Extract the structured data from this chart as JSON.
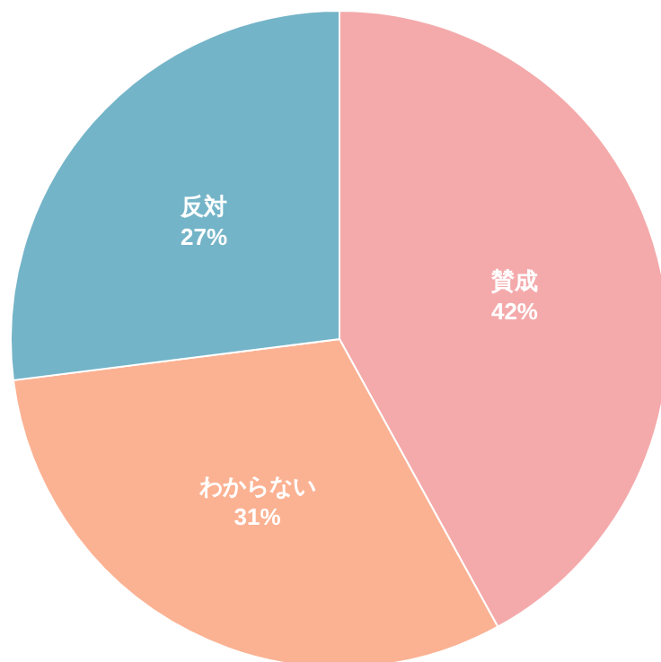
{
  "chart_data": {
    "type": "pie",
    "categories": [
      "賛成",
      "わからない",
      "反対"
    ],
    "values": [
      42,
      31,
      27
    ],
    "colors": [
      "#f4aaab",
      "#fbb293",
      "#74b4c8"
    ],
    "value_labels": [
      "42%",
      "31%",
      "27%"
    ]
  }
}
